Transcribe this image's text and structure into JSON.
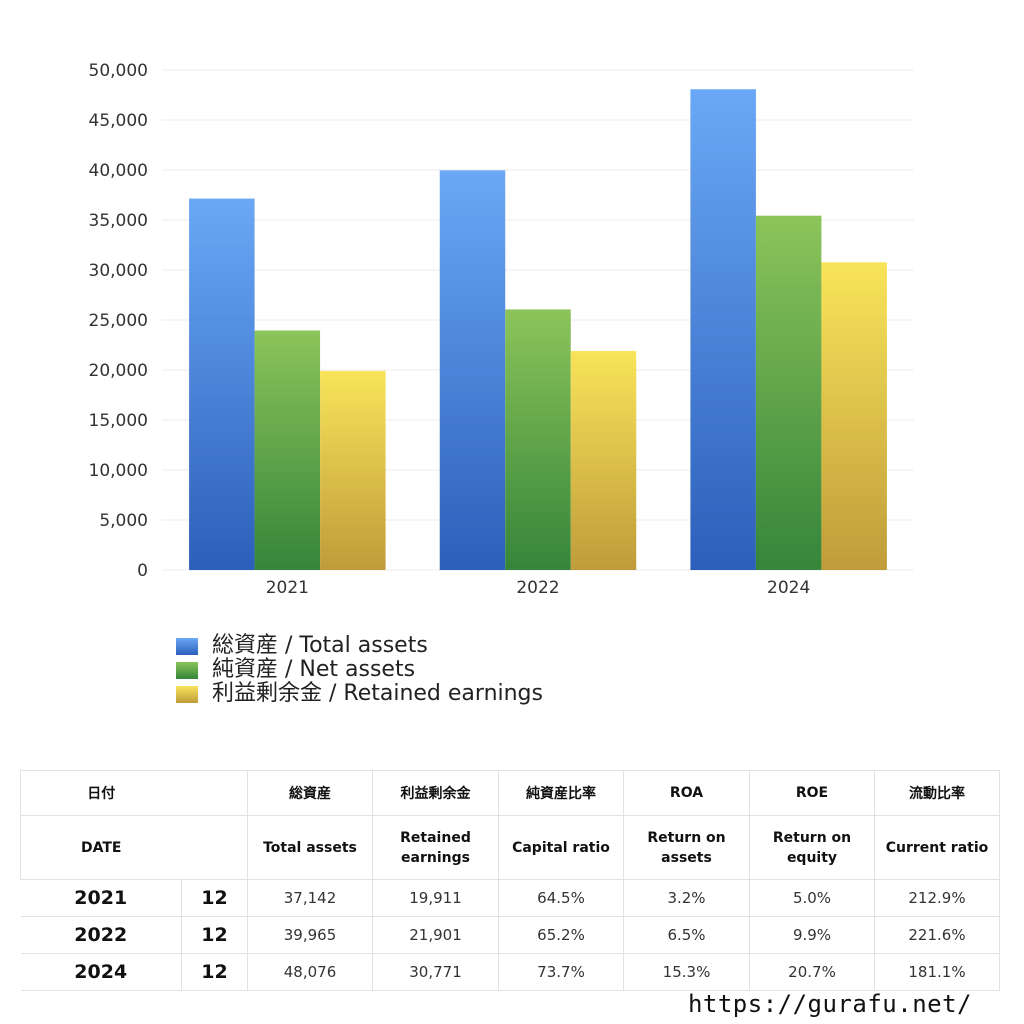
{
  "chart_data": {
    "type": "bar",
    "categories": [
      "2021",
      "2022",
      "2024"
    ],
    "series": [
      {
        "name": "総資産 / Total assets",
        "values": [
          37142,
          39965,
          48076
        ]
      },
      {
        "name": "純資産 / Net assets",
        "values": [
          23950,
          26060,
          35430
        ]
      },
      {
        "name": "利益剰余金 / Retained earnings",
        "values": [
          19911,
          21901,
          30771
        ]
      }
    ],
    "ylim": [
      0,
      50000
    ],
    "yticks": [
      0,
      5000,
      10000,
      15000,
      20000,
      25000,
      30000,
      35000,
      40000,
      45000,
      50000
    ],
    "ytick_labels": [
      "0",
      "5,000",
      "10,000",
      "15,000",
      "20,000",
      "25,000",
      "30,000",
      "35,000",
      "40,000",
      "45,000",
      "50,000"
    ],
    "grid": true,
    "legend": "bottom-left"
  },
  "colors": {
    "total_assets_top": "#6aa8f5",
    "total_assets_bottom": "#2c5fba",
    "net_assets_top": "#8cc45a",
    "net_assets_bottom": "#35853a",
    "retained_top": "#f8e45a",
    "retained_bottom": "#bf9c3a"
  },
  "legend": {
    "items": [
      "総資産 / Total assets",
      "純資産 / Net assets",
      "利益剰余金 / Retained earnings"
    ]
  },
  "table": {
    "header_jp": [
      "日付",
      "総資産",
      "利益剰余金",
      "純資産比率",
      "ROA",
      "ROE",
      "流動比率"
    ],
    "header_en": [
      "DATE",
      "Total assets",
      "Retained earnings",
      "Capital ratio",
      "Return on assets",
      "Return on equity",
      "Current ratio"
    ],
    "rows": [
      {
        "year": "2021",
        "month": "12",
        "total_assets": "37,142",
        "retained": "19,911",
        "capital_ratio": "64.5%",
        "roa": "3.2%",
        "roe": "5.0%",
        "current_ratio": "212.9%"
      },
      {
        "year": "2022",
        "month": "12",
        "total_assets": "39,965",
        "retained": "21,901",
        "capital_ratio": "65.2%",
        "roa": "6.5%",
        "roe": "9.9%",
        "current_ratio": "221.6%"
      },
      {
        "year": "2024",
        "month": "12",
        "total_assets": "48,076",
        "retained": "30,771",
        "capital_ratio": "73.7%",
        "roa": "15.3%",
        "roe": "20.7%",
        "current_ratio": "181.1%"
      }
    ]
  },
  "footer": {
    "url": "https://gurafu.net/"
  }
}
